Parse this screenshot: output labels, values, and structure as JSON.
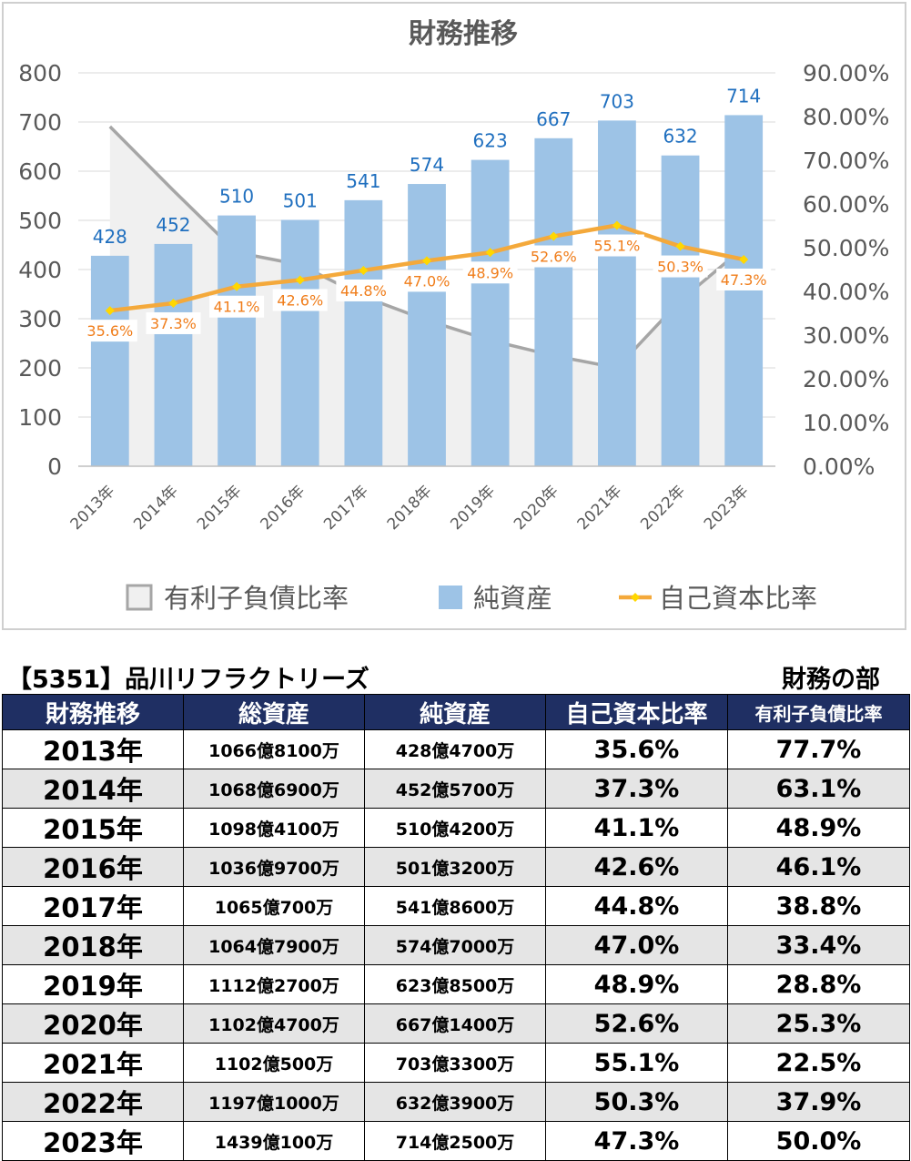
{
  "chart_data": {
    "type": "bar",
    "title": "財務推移",
    "categories": [
      "2013年",
      "2014年",
      "2015年",
      "2016年",
      "2017年",
      "2018年",
      "2019年",
      "2020年",
      "2021年",
      "2022年",
      "2023年"
    ],
    "y_left": {
      "ylim": [
        0,
        800
      ],
      "ticks": [
        "0",
        "100",
        "200",
        "300",
        "400",
        "500",
        "600",
        "700",
        "800"
      ]
    },
    "y_right": {
      "ylim": [
        0,
        90
      ],
      "ticks": [
        "0.00%",
        "10.00%",
        "20.00%",
        "30.00%",
        "40.00%",
        "50.00%",
        "60.00%",
        "70.00%",
        "80.00%",
        "90.00%"
      ]
    },
    "series": [
      {
        "name": "有利子負債比率",
        "type": "area",
        "axis": "right",
        "color": "#a6a6a6",
        "fill": "#f0f0f0",
        "values": [
          77.7,
          63.1,
          48.9,
          46.1,
          38.8,
          33.4,
          28.8,
          25.3,
          22.5,
          37.9,
          50.0
        ]
      },
      {
        "name": "純資産",
        "type": "bar",
        "axis": "left",
        "color": "#9dc3e6",
        "values": [
          428,
          452,
          510,
          501,
          541,
          574,
          623,
          667,
          703,
          632,
          714
        ],
        "labels": [
          "428",
          "452",
          "510",
          "501",
          "541",
          "574",
          "623",
          "667",
          "703",
          "632",
          "714"
        ]
      },
      {
        "name": "自己資本比率",
        "type": "line",
        "axis": "right",
        "color": "#f4a93b",
        "marker": "#ffd700",
        "values": [
          35.6,
          37.3,
          41.1,
          42.6,
          44.8,
          47.0,
          48.9,
          52.6,
          55.1,
          50.3,
          47.3
        ],
        "labels": [
          "35.6%",
          "37.3%",
          "41.1%",
          "42.6%",
          "44.8%",
          "47.0%",
          "48.9%",
          "52.6%",
          "55.1%",
          "50.3%",
          "47.3%"
        ]
      }
    ],
    "legend": "bottom",
    "grid": true,
    "colors": {
      "bar_label": "#1f6fbf",
      "line_label": "#f07d1a",
      "grid": "#d9d9d9",
      "axis_text": "#595959"
    }
  },
  "heading": "【5351】品川リフラクトリーズ",
  "section_label": "財務の部",
  "table": {
    "headers": [
      "財務推移",
      "総資産",
      "純資産",
      "自己資本比率",
      "有利子負債比率"
    ],
    "rows": [
      [
        "2013年",
        "1066億8100万",
        "428億4700万",
        "35.6%",
        "77.7%"
      ],
      [
        "2014年",
        "1068億6900万",
        "452億5700万",
        "37.3%",
        "63.1%"
      ],
      [
        "2015年",
        "1098億4100万",
        "510億4200万",
        "41.1%",
        "48.9%"
      ],
      [
        "2016年",
        "1036億9700万",
        "501億3200万",
        "42.6%",
        "46.1%"
      ],
      [
        "2017年",
        "1065億700万",
        "541億8600万",
        "44.8%",
        "38.8%"
      ],
      [
        "2018年",
        "1064億7900万",
        "574億7000万",
        "47.0%",
        "33.4%"
      ],
      [
        "2019年",
        "1112億2700万",
        "623億8500万",
        "48.9%",
        "28.8%"
      ],
      [
        "2020年",
        "1102億4700万",
        "667億1400万",
        "52.6%",
        "25.3%"
      ],
      [
        "2021年",
        "1102億500万",
        "703億3300万",
        "55.1%",
        "22.5%"
      ],
      [
        "2022年",
        "1197億1000万",
        "632億3900万",
        "50.3%",
        "37.9%"
      ],
      [
        "2023年",
        "1439億100万",
        "714億2500万",
        "47.3%",
        "50.0%"
      ]
    ]
  }
}
